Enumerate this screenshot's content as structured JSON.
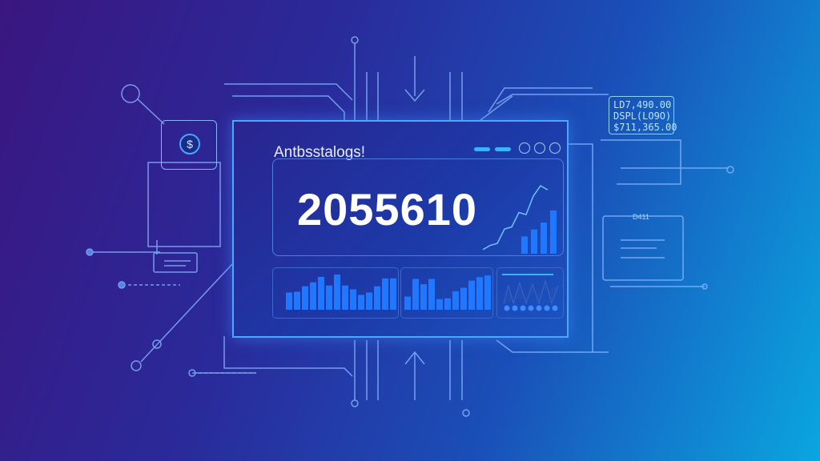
{
  "dashboard": {
    "title": "Antbsstalogs!",
    "big_number": "2055610",
    "icons": [
      "clock-icon",
      "clock-icon",
      "smile-icon"
    ]
  },
  "side_note": {
    "lines": [
      "LD7,490.00",
      "DSPL(LO9O)",
      "$711,365.00"
    ]
  },
  "dollar_icon": "$",
  "dell_label": "D411",
  "colors": {
    "accent": "#39b4ff",
    "bars": "#1f78ff",
    "panel_border": "#4aa8ff"
  },
  "chart_data": [
    {
      "type": "bar",
      "values": [
        22,
        23,
        30,
        35,
        42,
        31,
        45,
        31,
        26,
        19,
        22,
        30,
        40,
        40
      ]
    },
    {
      "type": "bar",
      "values": [
        15,
        35,
        29,
        35,
        12,
        13,
        21,
        25,
        33,
        37,
        39
      ]
    },
    {
      "type": "line",
      "values": [
        2,
        4,
        5,
        12,
        13,
        20,
        19,
        28,
        33,
        31
      ]
    },
    {
      "type": "bar",
      "values": [
        10,
        14,
        18,
        25
      ]
    }
  ]
}
